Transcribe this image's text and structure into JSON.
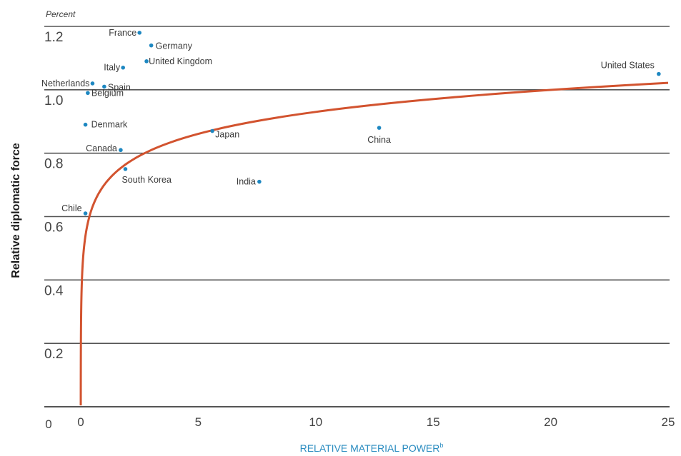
{
  "chart_data": {
    "type": "scatter",
    "title": "",
    "xlabel": "RELATIVE MATERIAL POWER",
    "xlabel_superscript": "b",
    "ylabel": "Relative diplomatic force",
    "yunit": "Percent",
    "xlim": [
      0,
      25
    ],
    "ylim": [
      0,
      1.2
    ],
    "x_ticks": [
      "0",
      "5",
      "10",
      "15",
      "20",
      "25"
    ],
    "x_origin_label": "0",
    "y_ticks": [
      "0.2",
      "0.4",
      "0.6",
      "0.8",
      "1.0",
      "1.2"
    ],
    "grid": "horizontal",
    "points": [
      {
        "label": "France",
        "x": 2.5,
        "y": 1.18
      },
      {
        "label": "Germany",
        "x": 3.0,
        "y": 1.14
      },
      {
        "label": "United Kingdom",
        "x": 2.8,
        "y": 1.09
      },
      {
        "label": "Italy",
        "x": 1.8,
        "y": 1.07
      },
      {
        "label": "Netherlands",
        "x": 0.5,
        "y": 1.02
      },
      {
        "label": "Spain",
        "x": 1.0,
        "y": 1.01
      },
      {
        "label": "Belgium",
        "x": 0.3,
        "y": 0.99
      },
      {
        "label": "Denmark",
        "x": 0.2,
        "y": 0.89
      },
      {
        "label": "Canada",
        "x": 1.7,
        "y": 0.81
      },
      {
        "label": "South Korea",
        "x": 1.9,
        "y": 0.75
      },
      {
        "label": "Japan",
        "x": 5.6,
        "y": 0.87
      },
      {
        "label": "China",
        "x": 12.7,
        "y": 0.88
      },
      {
        "label": "India",
        "x": 7.6,
        "y": 0.71
      },
      {
        "label": "Chile",
        "x": 0.2,
        "y": 0.61
      },
      {
        "label": "United States",
        "x": 24.6,
        "y": 1.05
      }
    ],
    "trend_line": {
      "type": "logarithmic",
      "color": "#d2532f"
    },
    "colors": {
      "points": "#1d87c1",
      "trend": "#d2532f",
      "grid": "#555555",
      "xlabel": "#2a8cc0"
    }
  }
}
